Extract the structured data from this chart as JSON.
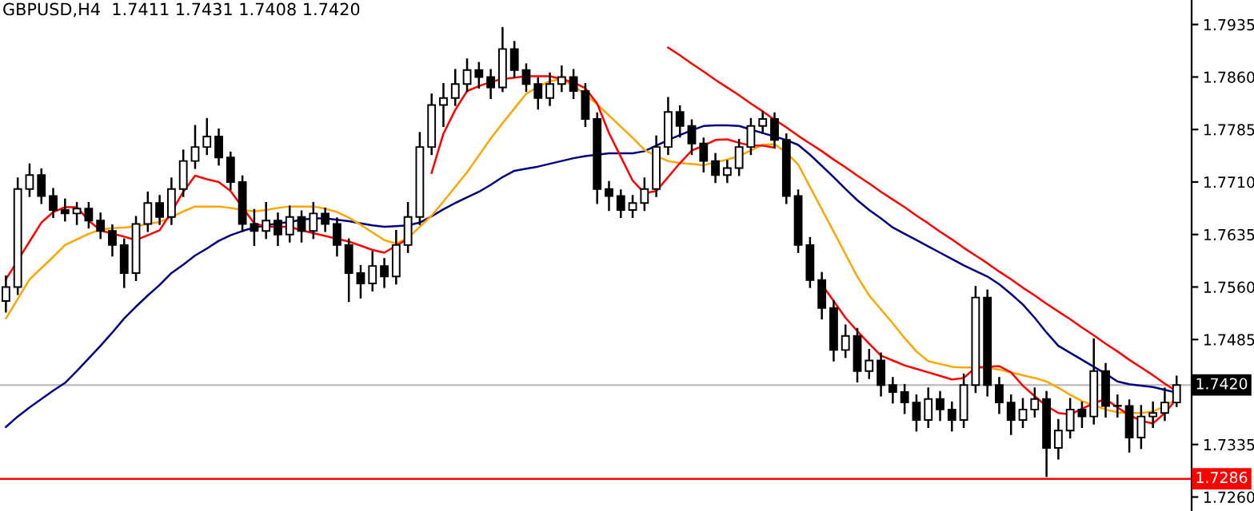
{
  "chart_data": {
    "type": "candlestick",
    "title": "GBPUSD,H4  1.7411 1.7431 1.7408 1.7420",
    "categories": [
      null,
      null,
      null,
      null,
      null,
      null,
      null,
      null,
      null,
      null,
      null,
      null,
      null,
      null,
      null,
      null,
      null,
      null,
      null,
      null,
      null,
      null,
      null,
      null,
      null,
      null,
      null,
      null,
      null,
      null,
      null,
      null,
      null,
      null,
      null,
      null,
      null,
      null,
      null,
      null,
      null,
      null,
      null,
      null,
      null,
      null,
      null,
      null,
      null,
      null,
      null,
      null,
      null,
      null,
      null,
      null,
      null,
      null,
      null,
      null,
      null,
      null,
      null,
      null,
      null,
      null,
      null,
      null,
      null,
      null,
      null,
      null,
      null,
      null,
      null,
      null,
      null,
      null,
      null,
      null,
      null,
      null,
      null,
      null,
      null,
      null,
      null,
      null,
      null,
      null,
      null,
      null,
      null,
      null,
      null,
      null,
      null,
      null,
      null,
      null
    ],
    "ohlc": [
      [
        1.754,
        1.7575,
        1.7525,
        1.756
      ],
      [
        1.756,
        1.7715,
        1.755,
        1.77
      ],
      [
        1.77,
        1.7735,
        1.769,
        1.772
      ],
      [
        1.772,
        1.7728,
        1.768,
        1.769
      ],
      [
        1.769,
        1.77,
        1.766,
        1.767
      ],
      [
        1.767,
        1.7685,
        1.7655,
        1.7665
      ],
      [
        1.7665,
        1.768,
        1.765,
        1.7672
      ],
      [
        1.7672,
        1.768,
        1.7645,
        1.7655
      ],
      [
        1.7655,
        1.7665,
        1.763,
        1.764
      ],
      [
        1.764,
        1.7648,
        1.7605,
        1.762
      ],
      [
        1.762,
        1.7628,
        1.756,
        1.758
      ],
      [
        1.758,
        1.766,
        1.757,
        1.765
      ],
      [
        1.765,
        1.7695,
        1.764,
        1.768
      ],
      [
        1.768,
        1.769,
        1.765,
        1.766
      ],
      [
        1.766,
        1.7715,
        1.765,
        1.77
      ],
      [
        1.77,
        1.7755,
        1.769,
        1.774
      ],
      [
        1.774,
        1.779,
        1.773,
        1.776
      ],
      [
        1.776,
        1.78,
        1.775,
        1.7775
      ],
      [
        1.7775,
        1.7785,
        1.7735,
        1.7745
      ],
      [
        1.7745,
        1.7752,
        1.77,
        1.771
      ],
      [
        1.771,
        1.7718,
        1.764,
        1.765
      ],
      [
        1.765,
        1.767,
        1.762,
        1.764
      ],
      [
        1.764,
        1.768,
        1.763,
        1.7655
      ],
      [
        1.7655,
        1.7665,
        1.762,
        1.7635
      ],
      [
        1.7635,
        1.7675,
        1.7625,
        1.766
      ],
      [
        1.766,
        1.7668,
        1.7625,
        1.764
      ],
      [
        1.764,
        1.768,
        1.763,
        1.7665
      ],
      [
        1.7665,
        1.7672,
        1.764,
        1.765
      ],
      [
        1.765,
        1.7658,
        1.7605,
        1.762
      ],
      [
        1.762,
        1.7628,
        1.754,
        1.758
      ],
      [
        1.758,
        1.759,
        1.7545,
        1.7565
      ],
      [
        1.7565,
        1.761,
        1.7555,
        1.759
      ],
      [
        1.759,
        1.76,
        1.756,
        1.7575
      ],
      [
        1.7575,
        1.764,
        1.7565,
        1.762
      ],
      [
        1.762,
        1.768,
        1.761,
        1.766
      ],
      [
        1.766,
        1.778,
        1.765,
        1.776
      ],
      [
        1.776,
        1.7835,
        1.775,
        1.782
      ],
      [
        1.782,
        1.785,
        1.779,
        1.783
      ],
      [
        1.783,
        1.787,
        1.782,
        1.785
      ],
      [
        1.785,
        1.7885,
        1.784,
        1.787
      ],
      [
        1.787,
        1.788,
        1.7845,
        1.786
      ],
      [
        1.786,
        1.787,
        1.783,
        1.7845
      ],
      [
        1.7845,
        1.793,
        1.784,
        1.79
      ],
      [
        1.79,
        1.791,
        1.786,
        1.787
      ],
      [
        1.787,
        1.7878,
        1.784,
        1.785
      ],
      [
        1.785,
        1.7858,
        1.7815,
        1.783
      ],
      [
        1.783,
        1.7865,
        1.782,
        1.785
      ],
      [
        1.785,
        1.7875,
        1.784,
        1.786
      ],
      [
        1.786,
        1.787,
        1.783,
        1.784
      ],
      [
        1.784,
        1.785,
        1.779,
        1.78
      ],
      [
        1.78,
        1.7808,
        1.768,
        1.77
      ],
      [
        1.77,
        1.771,
        1.767,
        1.769
      ],
      [
        1.769,
        1.7698,
        1.766,
        1.767
      ],
      [
        1.767,
        1.769,
        1.766,
        1.768
      ],
      [
        1.768,
        1.7715,
        1.767,
        1.77
      ],
      [
        1.77,
        1.7775,
        1.769,
        1.776
      ],
      [
        1.776,
        1.783,
        1.775,
        1.781
      ],
      [
        1.781,
        1.7818,
        1.7775,
        1.779
      ],
      [
        1.779,
        1.7798,
        1.775,
        1.7765
      ],
      [
        1.7765,
        1.7772,
        1.7725,
        1.774
      ],
      [
        1.774,
        1.775,
        1.771,
        1.772
      ],
      [
        1.772,
        1.774,
        1.771,
        1.773
      ],
      [
        1.773,
        1.777,
        1.772,
        1.776
      ],
      [
        1.776,
        1.78,
        1.775,
        1.779
      ],
      [
        1.779,
        1.781,
        1.778,
        1.78
      ],
      [
        1.78,
        1.7808,
        1.776,
        1.777
      ],
      [
        1.777,
        1.7778,
        1.768,
        1.769
      ],
      [
        1.769,
        1.7698,
        1.761,
        1.762
      ],
      [
        1.762,
        1.763,
        1.756,
        1.757
      ],
      [
        1.757,
        1.758,
        1.7515,
        1.753
      ],
      [
        1.753,
        1.754,
        1.7455,
        1.747
      ],
      [
        1.747,
        1.7505,
        1.746,
        1.749
      ],
      [
        1.749,
        1.75,
        1.7425,
        1.744
      ],
      [
        1.744,
        1.747,
        1.743,
        1.7455
      ],
      [
        1.7455,
        1.7465,
        1.7405,
        1.742
      ],
      [
        1.742,
        1.743,
        1.7395,
        1.741
      ],
      [
        1.741,
        1.742,
        1.738,
        1.7395
      ],
      [
        1.7395,
        1.7405,
        1.7355,
        1.737
      ],
      [
        1.737,
        1.7415,
        1.736,
        1.74
      ],
      [
        1.74,
        1.741,
        1.737,
        1.7385
      ],
      [
        1.7385,
        1.7395,
        1.7355,
        1.737
      ],
      [
        1.737,
        1.7435,
        1.736,
        1.742
      ],
      [
        1.742,
        1.756,
        1.741,
        1.7545
      ],
      [
        1.7545,
        1.7555,
        1.7405,
        1.742
      ],
      [
        1.742,
        1.743,
        1.738,
        1.7395
      ],
      [
        1.7395,
        1.7405,
        1.735,
        1.737
      ],
      [
        1.737,
        1.74,
        1.736,
        1.7385
      ],
      [
        1.7385,
        1.7415,
        1.7375,
        1.74
      ],
      [
        1.74,
        1.741,
        1.729,
        1.733
      ],
      [
        1.733,
        1.737,
        1.7315,
        1.7355
      ],
      [
        1.7355,
        1.74,
        1.7345,
        1.7385
      ],
      [
        1.7385,
        1.7395,
        1.736,
        1.7375
      ],
      [
        1.7375,
        1.7485,
        1.7365,
        1.744
      ],
      [
        1.744,
        1.745,
        1.7375,
        1.739
      ],
      [
        1.739,
        1.7405,
        1.7375,
        1.739
      ],
      [
        1.739,
        1.7398,
        1.7325,
        1.7345
      ],
      [
        1.7345,
        1.739,
        1.733,
        1.7375
      ],
      [
        1.7375,
        1.7395,
        1.736,
        1.738
      ],
      [
        1.738,
        1.7415,
        1.737,
        1.7395
      ],
      [
        1.7395,
        1.7432,
        1.739,
        1.742
      ]
    ],
    "series": [
      {
        "type": "line",
        "color": "#000080",
        "values": [
          1.736,
          1.7375,
          1.7388,
          1.74,
          1.7412,
          1.7423,
          1.744,
          1.7458,
          1.7476,
          1.7495,
          1.7515,
          1.7532,
          1.7548,
          1.7563,
          1.758,
          1.7592,
          1.7605,
          1.7615,
          1.7626,
          1.7634,
          1.764,
          1.7645,
          1.7648,
          1.7651,
          1.7653,
          1.7656,
          1.7658,
          1.7658,
          1.7656,
          1.7654,
          1.7651,
          1.7648,
          1.7646,
          1.7647,
          1.7648,
          1.7652,
          1.7661,
          1.7671,
          1.768,
          1.7688,
          1.7696,
          1.7706,
          1.7717,
          1.7726,
          1.7729,
          1.7732,
          1.7736,
          1.774,
          1.7744,
          1.7747,
          1.7749,
          1.7751,
          1.7751,
          1.7751,
          1.7754,
          1.7762,
          1.777,
          1.7777,
          1.7784,
          1.779,
          1.7791,
          1.7791,
          1.779,
          1.7785,
          1.778,
          1.7775,
          1.777,
          1.7763,
          1.7749,
          1.7733,
          1.7717,
          1.77,
          1.7684,
          1.767,
          1.7658,
          1.7645,
          1.7636,
          1.7627,
          1.7618,
          1.7609,
          1.76,
          1.7591,
          1.7583,
          1.7575,
          1.7564,
          1.755,
          1.7535,
          1.7516,
          1.7495,
          1.7476,
          1.7466,
          1.7456,
          1.7446,
          1.7436,
          1.7425,
          1.7421,
          1.7419,
          1.7417,
          1.7413,
          1.7409
        ]
      },
      {
        "type": "line",
        "color": "#ffa500",
        "values": [
          1.7515,
          1.7543,
          1.7571,
          1.7587,
          1.7603,
          1.762,
          1.7628,
          1.7636,
          1.7642,
          1.7644,
          1.7645,
          1.7647,
          1.765,
          1.7653,
          1.766,
          1.7668,
          1.7675,
          1.7675,
          1.7675,
          1.7673,
          1.767,
          1.7668,
          1.767,
          1.7673,
          1.7675,
          1.7675,
          1.7675,
          1.7672,
          1.7667,
          1.7659,
          1.7649,
          1.7638,
          1.7627,
          1.7622,
          1.763,
          1.7646,
          1.7662,
          1.7682,
          1.7703,
          1.7724,
          1.7748,
          1.7772,
          1.7794,
          1.7815,
          1.7836,
          1.7846,
          1.7854,
          1.7857,
          1.7847,
          1.7835,
          1.7821,
          1.7805,
          1.7789,
          1.7773,
          1.7756,
          1.7747,
          1.774,
          1.7737,
          1.7736,
          1.7734,
          1.7738,
          1.7742,
          1.7747,
          1.7755,
          1.7763,
          1.7764,
          1.7752,
          1.7735,
          1.7703,
          1.7671,
          1.7639,
          1.7607,
          1.7575,
          1.7548,
          1.7528,
          1.7508,
          1.7487,
          1.7468,
          1.7454,
          1.745,
          1.7446,
          1.7445,
          1.7445,
          1.7445,
          1.7442,
          1.7438,
          1.7434,
          1.743,
          1.7425,
          1.7416,
          1.7406,
          1.7397,
          1.7391,
          1.7385,
          1.7381,
          1.738,
          1.738,
          1.7382,
          1.739,
          1.74
        ]
      },
      {
        "type": "line",
        "color": "#ff0000",
        "values": [
          1.7571,
          1.7598,
          1.7625,
          1.7652,
          1.7667,
          1.7674,
          1.7674,
          1.7655,
          1.7641,
          1.7636,
          1.7632,
          1.7627,
          1.7634,
          1.7641,
          1.7667,
          1.7696,
          1.7719,
          1.7714,
          1.771,
          1.7697,
          1.7674,
          1.7651,
          1.7646,
          1.7646,
          1.7646,
          1.7641,
          1.7637,
          1.7633,
          1.7629,
          1.7625,
          1.7619,
          1.7613,
          1.7609,
          1.7619,
          1.7629,
          null,
          1.7723,
          1.7779,
          1.7813,
          1.784,
          1.7847,
          1.7853,
          1.7857,
          1.7859,
          1.7861,
          1.7861,
          1.7861,
          1.7857,
          1.7852,
          1.7844,
          1.7822,
          1.778,
          1.7746,
          1.7712,
          1.7694,
          1.7697,
          1.7717,
          1.7737,
          1.7755,
          1.7762,
          1.777,
          1.7771,
          1.7766,
          1.7762,
          1.7762,
          1.7759,
          null,
          null,
          null,
          1.7564,
          1.754,
          1.7516,
          1.7497,
          1.7479,
          1.7462,
          1.7455,
          1.7448,
          1.7443,
          1.7438,
          1.7433,
          1.7428,
          1.743,
          1.7445,
          1.7446,
          1.7447,
          1.7438,
          1.7419,
          1.7404,
          1.739,
          1.738,
          1.7378,
          1.7386,
          1.7394,
          1.74,
          1.7388,
          1.7377,
          1.7369,
          1.7365,
          1.738,
          1.74
        ]
      },
      {
        "type": "line",
        "color": "#ff0000",
        "values": [
          null,
          null,
          null,
          null,
          null,
          null,
          null,
          null,
          null,
          null,
          null,
          null,
          null,
          null,
          null,
          null,
          null,
          null,
          null,
          null,
          null,
          null,
          null,
          null,
          null,
          null,
          null,
          null,
          null,
          null,
          null,
          null,
          null,
          null,
          null,
          null,
          null,
          null,
          null,
          null,
          null,
          null,
          null,
          null,
          null,
          null,
          null,
          null,
          null,
          null,
          null,
          null,
          null,
          null,
          null,
          null,
          1.7902,
          1.7891,
          1.7879,
          1.7868,
          1.7856,
          1.7845,
          1.7834,
          1.7822,
          1.7811,
          1.7799,
          1.7788,
          1.7776,
          1.7765,
          1.7754,
          1.7742,
          1.7731,
          1.7719,
          1.7708,
          1.7696,
          1.7685,
          1.7674,
          1.7662,
          1.7651,
          1.7639,
          1.7628,
          1.7616,
          1.7605,
          1.7594,
          1.7582,
          1.7571,
          1.7559,
          1.7548,
          1.7536,
          1.7525,
          1.7514,
          1.7502,
          1.7491,
          1.7479,
          1.7468,
          1.7456,
          1.7445,
          1.7434,
          1.7422,
          1.7411
        ]
      }
    ],
    "ylim": [
      1.724,
      1.797
    ],
    "yticks": [
      1.7935,
      {
        "value": 1.786,
        "label": "1.7860"
      },
      1.7785,
      {
        "value": 1.771,
        "label": "1.7710"
      },
      1.7635,
      {
        "value": 1.756,
        "label": "1.7560"
      },
      1.7485,
      1.7335,
      {
        "value": 1.726,
        "label": "1.7260"
      }
    ],
    "ref_lines": [
      {
        "axis": "y",
        "value": 1.742,
        "label": "1.7420",
        "color": "#c0c0c0"
      },
      {
        "axis": "y",
        "value": 1.7286,
        "label": "1.7286",
        "color": "#ff0000"
      }
    ]
  }
}
